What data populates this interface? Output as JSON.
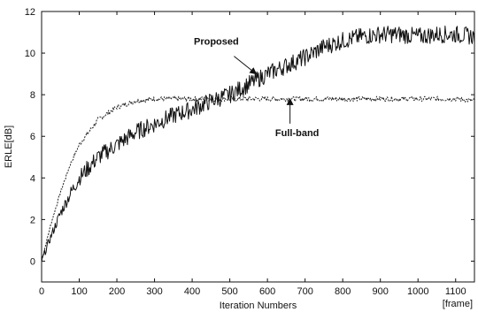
{
  "chart_data": {
    "type": "line",
    "title": "",
    "xlabel": "Iteration Numbers",
    "xunit": "[frame]",
    "ylabel": "ERLE[dB]",
    "xlim": [
      0,
      1150
    ],
    "ylim": [
      -1,
      12
    ],
    "xticks": [
      0,
      100,
      200,
      300,
      400,
      500,
      600,
      700,
      800,
      900,
      1000,
      1100
    ],
    "yticks": [
      0,
      2,
      4,
      6,
      8,
      10,
      12
    ],
    "grid": false,
    "colors": {
      "proposed": "#111111",
      "full_band": "#222222",
      "axes": "#111111"
    },
    "series": [
      {
        "key": "proposed",
        "x": [
          0,
          25,
          50,
          75,
          100,
          150,
          200,
          250,
          300,
          350,
          400,
          450,
          500,
          550,
          600,
          650,
          700,
          750,
          800,
          850,
          900,
          950,
          1000,
          1050,
          1100,
          1150
        ],
        "y": [
          0,
          1.2,
          2.3,
          3.2,
          4.0,
          5.0,
          5.6,
          6.2,
          6.6,
          7.0,
          7.3,
          7.7,
          8.0,
          8.5,
          9.0,
          9.4,
          9.8,
          10.3,
          10.6,
          10.8,
          10.9,
          10.9,
          10.8,
          10.9,
          10.9,
          10.8
        ]
      },
      {
        "key": "full_band",
        "x": [
          0,
          25,
          50,
          75,
          100,
          150,
          200,
          250,
          300,
          350,
          400,
          450,
          500,
          550,
          600,
          650,
          700,
          750,
          800,
          850,
          900,
          950,
          1000,
          1050,
          1100,
          1150
        ],
        "y": [
          0,
          1.8,
          3.3,
          4.6,
          5.6,
          6.8,
          7.4,
          7.7,
          7.8,
          7.8,
          7.8,
          7.8,
          7.8,
          7.8,
          7.8,
          7.8,
          7.8,
          7.8,
          7.8,
          7.8,
          7.8,
          7.8,
          7.8,
          7.8,
          7.8,
          7.7
        ]
      }
    ],
    "annotations": [
      {
        "key": "proposed",
        "text": "Proposed",
        "arrow_to": [
          570,
          9.0
        ]
      },
      {
        "key": "full_band",
        "text": "Full-band",
        "arrow_to": [
          660,
          7.8
        ]
      }
    ]
  }
}
